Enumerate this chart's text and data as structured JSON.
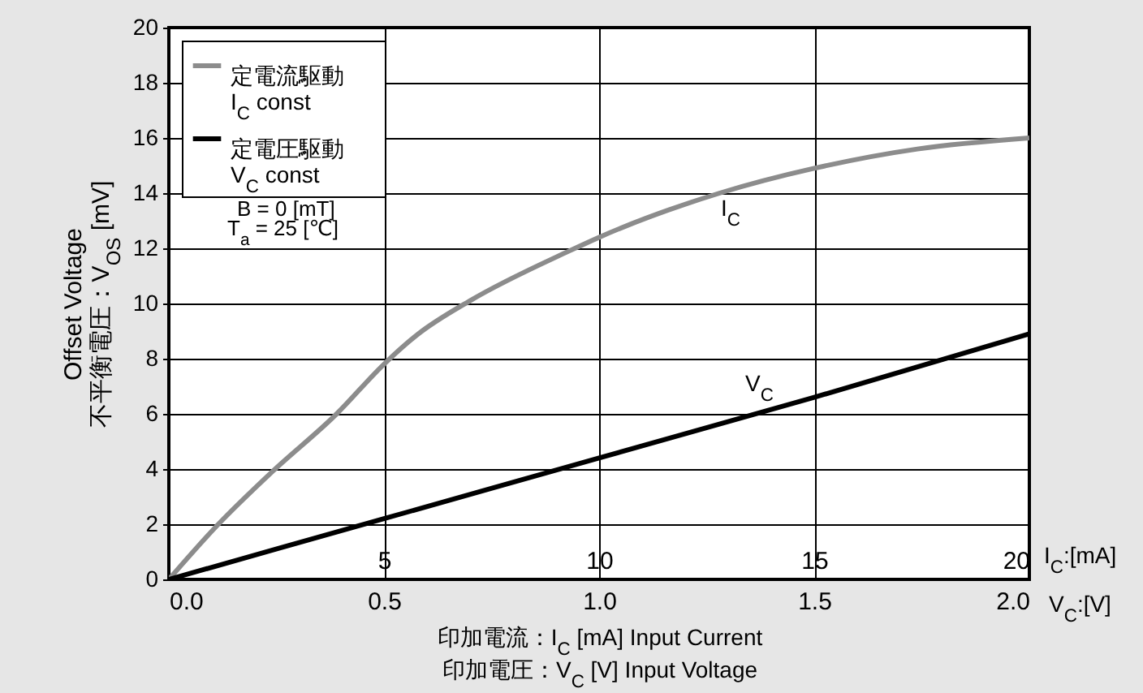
{
  "chart_data": {
    "type": "line",
    "xlabel": "印加電流：I$_{C}$ [mA]  Input Current",
    "x2label": "印加電圧：V$_{C}$ [V]  Input Voltage",
    "ylabel": "Offset Voltage\n不平衡電圧：V$_{OS}$ [mV]",
    "xlim": [
      0,
      20
    ],
    "xticks": [
      5,
      10,
      15,
      20
    ],
    "x2lim": [
      0,
      2
    ],
    "x2ticks": [
      {
        "value": 0,
        "label": "0.0"
      },
      {
        "value": 0.5,
        "label": "0.5"
      },
      {
        "value": 1,
        "label": "1.0"
      },
      {
        "value": 1.5,
        "label": "1.5"
      },
      {
        "value": 2,
        "label": "2.0"
      }
    ],
    "ylim": [
      0,
      20
    ],
    "yticks": [
      0,
      2,
      4,
      6,
      8,
      10,
      12,
      14,
      16,
      18,
      20
    ],
    "grid": true,
    "legend": "top left",
    "line_style": "solid",
    "series": [
      {
        "name": "定電流駆動\nI$_{C}$ const",
        "color": "#8c8c8c",
        "x": [
          0,
          1.15,
          2.4,
          3.9,
          5,
          5.8,
          7,
          9.3,
          10,
          12.8,
          15,
          17.4,
          20
        ],
        "values": [
          0,
          2,
          3.9,
          6,
          7.8,
          8.9,
          10.1,
          11.9,
          12.4,
          14,
          14.9,
          15.6,
          16
        ]
      },
      {
        "name": "定電圧駆動\nV$_{C}$ const",
        "color": "#000000",
        "axis": "x2",
        "x": [
          0,
          0.5,
          1,
          1.5,
          2
        ],
        "values": [
          0,
          2.2,
          4.4,
          6.6,
          8.9
        ]
      }
    ],
    "annotations": [
      "B  =   0 [mT]",
      "T$_{a}$ = 25 [℃]",
      "I$_{C}$:[mA]",
      "V$_{C}$:[V]",
      "I$_{C}$",
      "V$_{C}$"
    ]
  }
}
